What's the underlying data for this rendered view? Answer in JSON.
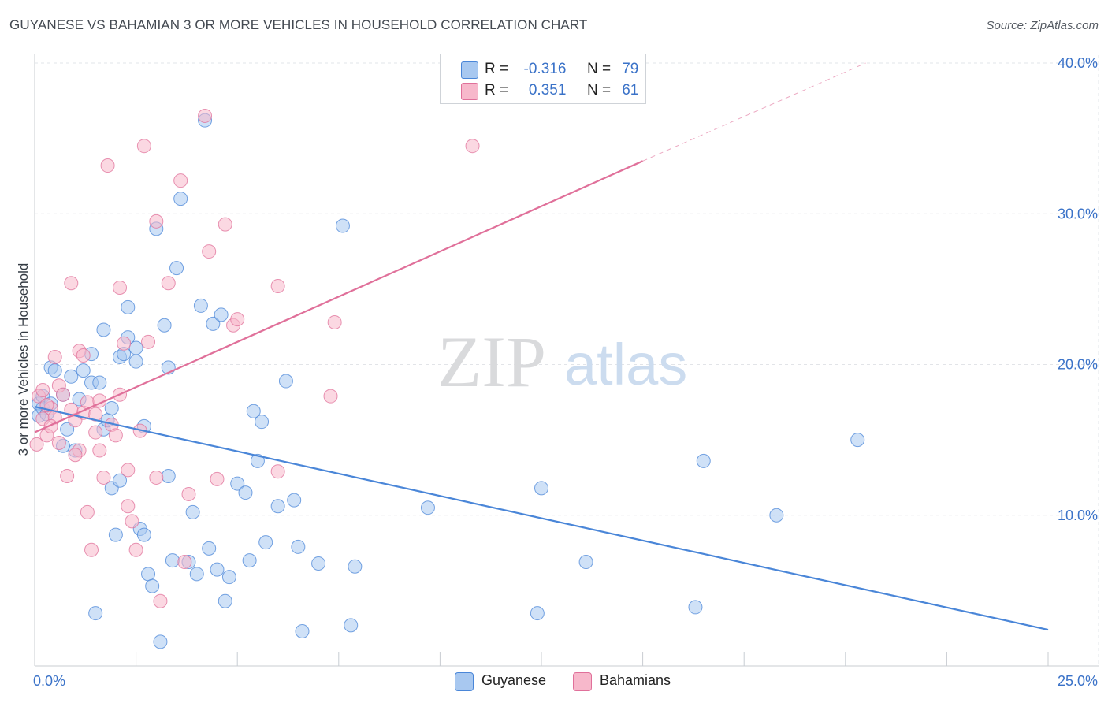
{
  "header": {
    "title": "GUYANESE VS BAHAMIAN 3 OR MORE VEHICLES IN HOUSEHOLD CORRELATION CHART",
    "source": "Source: ZipAtlas.com"
  },
  "watermark": {
    "zip": "ZIP",
    "atlas": "atlas"
  },
  "legend_top": {
    "rows": [
      {
        "r_label": "R =",
        "r_value": "-0.316",
        "n_label": "N =",
        "n_value": "79",
        "color": "#a8c8f0"
      },
      {
        "r_label": "R =",
        "r_value": "0.351",
        "n_label": "N =",
        "n_value": "61",
        "color": "#f7b8cb"
      }
    ]
  },
  "legend_bottom": {
    "items": [
      {
        "label": "Guyanese",
        "color": "#a8c8f0"
      },
      {
        "label": "Bahamians",
        "color": "#f7b8cb"
      }
    ]
  },
  "chart_data": {
    "type": "scatter",
    "title": "GUYANESE VS BAHAMIAN 3 OR MORE VEHICLES IN HOUSEHOLD CORRELATION CHART",
    "xlabel": "",
    "ylabel": "3 or more Vehicles in Household",
    "xlim": [
      0,
      25
    ],
    "ylim": [
      0,
      40
    ],
    "x_tick_labels": {
      "min": "0.0%",
      "max": "25.0%"
    },
    "y_ticks": [
      10,
      20,
      30,
      40
    ],
    "y_tick_labels": [
      "10.0%",
      "20.0%",
      "30.0%",
      "40.0%"
    ],
    "grid": true,
    "series": [
      {
        "name": "Guyanese",
        "color": "#4a86d8",
        "fill": "#a8c8f0",
        "trend": {
          "x": [
            0,
            25
          ],
          "y": [
            17.2,
            2.4
          ]
        },
        "points": [
          [
            0.1,
            17.4
          ],
          [
            0.1,
            16.6
          ],
          [
            0.2,
            17.9
          ],
          [
            0.2,
            17.1
          ],
          [
            0.3,
            16.7
          ],
          [
            0.4,
            19.8
          ],
          [
            0.4,
            17.4
          ],
          [
            0.5,
            19.6
          ],
          [
            0.7,
            18.0
          ],
          [
            0.7,
            14.6
          ],
          [
            0.8,
            15.7
          ],
          [
            0.9,
            19.2
          ],
          [
            1.0,
            14.3
          ],
          [
            1.1,
            17.7
          ],
          [
            1.2,
            19.6
          ],
          [
            1.4,
            20.7
          ],
          [
            1.4,
            18.8
          ],
          [
            1.5,
            3.5
          ],
          [
            1.6,
            18.8
          ],
          [
            1.7,
            15.7
          ],
          [
            1.7,
            22.3
          ],
          [
            1.8,
            16.3
          ],
          [
            1.9,
            17.1
          ],
          [
            1.9,
            11.8
          ],
          [
            2.0,
            8.7
          ],
          [
            2.1,
            20.5
          ],
          [
            2.1,
            12.3
          ],
          [
            2.2,
            20.7
          ],
          [
            2.3,
            21.8
          ],
          [
            2.3,
            23.8
          ],
          [
            2.5,
            21.1
          ],
          [
            2.5,
            20.2
          ],
          [
            2.6,
            9.1
          ],
          [
            2.7,
            8.7
          ],
          [
            2.7,
            15.9
          ],
          [
            2.8,
            6.1
          ],
          [
            2.9,
            5.3
          ],
          [
            3.0,
            29.0
          ],
          [
            3.1,
            1.6
          ],
          [
            3.2,
            22.6
          ],
          [
            3.3,
            19.8
          ],
          [
            3.3,
            12.6
          ],
          [
            3.4,
            7.0
          ],
          [
            3.5,
            26.4
          ],
          [
            3.6,
            31.0
          ],
          [
            3.8,
            6.9
          ],
          [
            3.9,
            10.2
          ],
          [
            4.0,
            6.1
          ],
          [
            4.1,
            23.9
          ],
          [
            4.2,
            36.2
          ],
          [
            4.3,
            7.8
          ],
          [
            4.4,
            22.7
          ],
          [
            4.5,
            6.4
          ],
          [
            4.6,
            23.3
          ],
          [
            4.7,
            4.3
          ],
          [
            4.8,
            5.9
          ],
          [
            5.0,
            12.1
          ],
          [
            5.2,
            11.5
          ],
          [
            5.3,
            7.0
          ],
          [
            5.4,
            16.9
          ],
          [
            5.5,
            13.6
          ],
          [
            5.6,
            16.2
          ],
          [
            5.7,
            8.2
          ],
          [
            6.0,
            10.6
          ],
          [
            6.2,
            18.9
          ],
          [
            6.4,
            11.0
          ],
          [
            6.5,
            7.9
          ],
          [
            6.6,
            2.3
          ],
          [
            7.0,
            6.8
          ],
          [
            7.6,
            29.2
          ],
          [
            7.8,
            2.7
          ],
          [
            7.9,
            6.6
          ],
          [
            9.7,
            10.5
          ],
          [
            12.4,
            3.5
          ],
          [
            12.5,
            11.8
          ],
          [
            13.6,
            6.9
          ],
          [
            16.3,
            3.9
          ],
          [
            16.5,
            13.6
          ],
          [
            18.3,
            10.0
          ],
          [
            20.3,
            15.0
          ]
        ]
      },
      {
        "name": "Bahamians",
        "color": "#e0709a",
        "fill": "#f7b8cb",
        "trend": {
          "x": [
            0,
            15
          ],
          "y": [
            15.5,
            33.5
          ]
        },
        "trend_dashed": {
          "x": [
            15,
            20.5
          ],
          "y": [
            33.5,
            40.0
          ]
        },
        "points": [
          [
            0.05,
            14.7
          ],
          [
            0.1,
            17.9
          ],
          [
            0.2,
            16.4
          ],
          [
            0.3,
            15.3
          ],
          [
            0.4,
            17.1
          ],
          [
            0.5,
            20.5
          ],
          [
            0.5,
            16.5
          ],
          [
            0.6,
            18.6
          ],
          [
            0.6,
            14.8
          ],
          [
            0.7,
            18.0
          ],
          [
            0.8,
            12.6
          ],
          [
            0.9,
            25.4
          ],
          [
            1.0,
            16.3
          ],
          [
            1.1,
            20.9
          ],
          [
            1.1,
            14.3
          ],
          [
            1.2,
            16.8
          ],
          [
            1.3,
            17.5
          ],
          [
            1.3,
            10.2
          ],
          [
            1.4,
            7.7
          ],
          [
            1.5,
            15.5
          ],
          [
            1.5,
            16.7
          ],
          [
            1.6,
            14.3
          ],
          [
            1.6,
            17.6
          ],
          [
            1.7,
            12.5
          ],
          [
            1.8,
            33.2
          ],
          [
            1.9,
            16.0
          ],
          [
            2.0,
            15.3
          ],
          [
            2.1,
            25.1
          ],
          [
            2.1,
            18.0
          ],
          [
            2.2,
            21.4
          ],
          [
            2.3,
            10.6
          ],
          [
            2.4,
            9.6
          ],
          [
            2.5,
            7.7
          ],
          [
            2.6,
            15.6
          ],
          [
            2.7,
            34.5
          ],
          [
            2.8,
            21.5
          ],
          [
            3.0,
            29.5
          ],
          [
            3.0,
            12.5
          ],
          [
            3.1,
            4.3
          ],
          [
            3.3,
            25.4
          ],
          [
            3.6,
            32.2
          ],
          [
            3.7,
            6.9
          ],
          [
            3.8,
            11.4
          ],
          [
            4.2,
            36.5
          ],
          [
            4.3,
            27.5
          ],
          [
            4.5,
            12.4
          ],
          [
            4.7,
            29.3
          ],
          [
            4.9,
            22.6
          ],
          [
            5.0,
            23.0
          ],
          [
            6.0,
            25.2
          ],
          [
            6.0,
            12.9
          ],
          [
            7.3,
            17.9
          ],
          [
            7.4,
            22.8
          ],
          [
            10.8,
            34.5
          ],
          [
            0.3,
            17.3
          ],
          [
            0.9,
            17.0
          ],
          [
            1.2,
            20.6
          ],
          [
            0.4,
            15.9
          ],
          [
            2.3,
            13.0
          ],
          [
            1.0,
            14.0
          ],
          [
            0.2,
            18.3
          ]
        ]
      }
    ]
  }
}
